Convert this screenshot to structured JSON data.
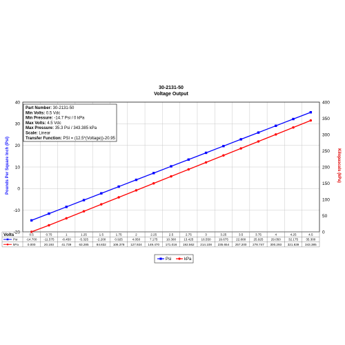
{
  "chart_data": {
    "type": "line",
    "title": "30-2131-50",
    "subtitle": "Voltage Output",
    "ylabel_left": "Pounds Per Square Inch (Psi)",
    "ylabel_right": "Kilopascals (kPa)",
    "xlabel": "Volts",
    "ylim_left": [
      -20,
      40
    ],
    "ylim_right": [
      0,
      400
    ],
    "yticks_left": [
      -20,
      -10,
      0,
      10,
      20,
      30,
      40
    ],
    "yticks_right": [
      0,
      50,
      100,
      150,
      200,
      250,
      300,
      350,
      400
    ],
    "grid": true,
    "legend_position": "bottom",
    "x": [
      "0.5",
      "0.75",
      "1",
      "1.25",
      "1.5",
      "1.75",
      "2",
      "2.25",
      "2.5",
      "2.75",
      "3",
      "3.25",
      "3.5",
      "3.75",
      "4",
      "4.25",
      "4.5"
    ],
    "series": [
      {
        "name": "Psi",
        "color": "#0000ff",
        "axis": "left",
        "values": [
          -14.7,
          -11.575,
          -8.45,
          -5.325,
          -2.2,
          0.925,
          4.05,
          7.175,
          10.3,
          13.425,
          16.55,
          19.675,
          22.8,
          25.925,
          29.05,
          32.175,
          35.3
        ],
        "labels": [
          "-14.700",
          "-11.575",
          "-8.450",
          "-5.325",
          "-2.200",
          "0.925",
          "4.050",
          "7.175",
          "10.300",
          "13.425",
          "16.550",
          "19.675",
          "22.800",
          "25.925",
          "29.050",
          "32.175",
          "35.300"
        ]
      },
      {
        "name": "kPa",
        "color": "#ff0000",
        "axis": "right",
        "values": [
          0,
          20.193,
          41.739,
          63.285,
          84.832,
          106.378,
          127.924,
          149.47,
          171.016,
          192.562,
          214.108,
          235.654,
          257.2,
          278.747,
          300.293,
          321.839,
          343.385
        ],
        "labels": [
          "0.000",
          "20.193",
          "41.739",
          "63.285",
          "84.832",
          "106.378",
          "127.924",
          "149.470",
          "171.016",
          "192.562",
          "214.108",
          "235.654",
          "257.200",
          "278.747",
          "300.293",
          "321.839",
          "343.385"
        ]
      }
    ],
    "info_box": [
      {
        "label": "Part Number:",
        "value": " 30-2131-50"
      },
      {
        "label": "Min Volts:",
        "value": " 0.5 Vdc"
      },
      {
        "label": "Min Pressure:",
        "value": " -14.7 Psi / 0 kPa"
      },
      {
        "label": "Max Volts:",
        "value": " 4.5 Vdc"
      },
      {
        "label": "Max Pressure:",
        "value": " 35.3 Psi / 343.385 kPa"
      },
      {
        "label": "Scale:",
        "value": " Linear"
      },
      {
        "label": "Transfer Function:",
        "value": " PSI = (12.5*(Voltage))-20.95"
      }
    ]
  }
}
